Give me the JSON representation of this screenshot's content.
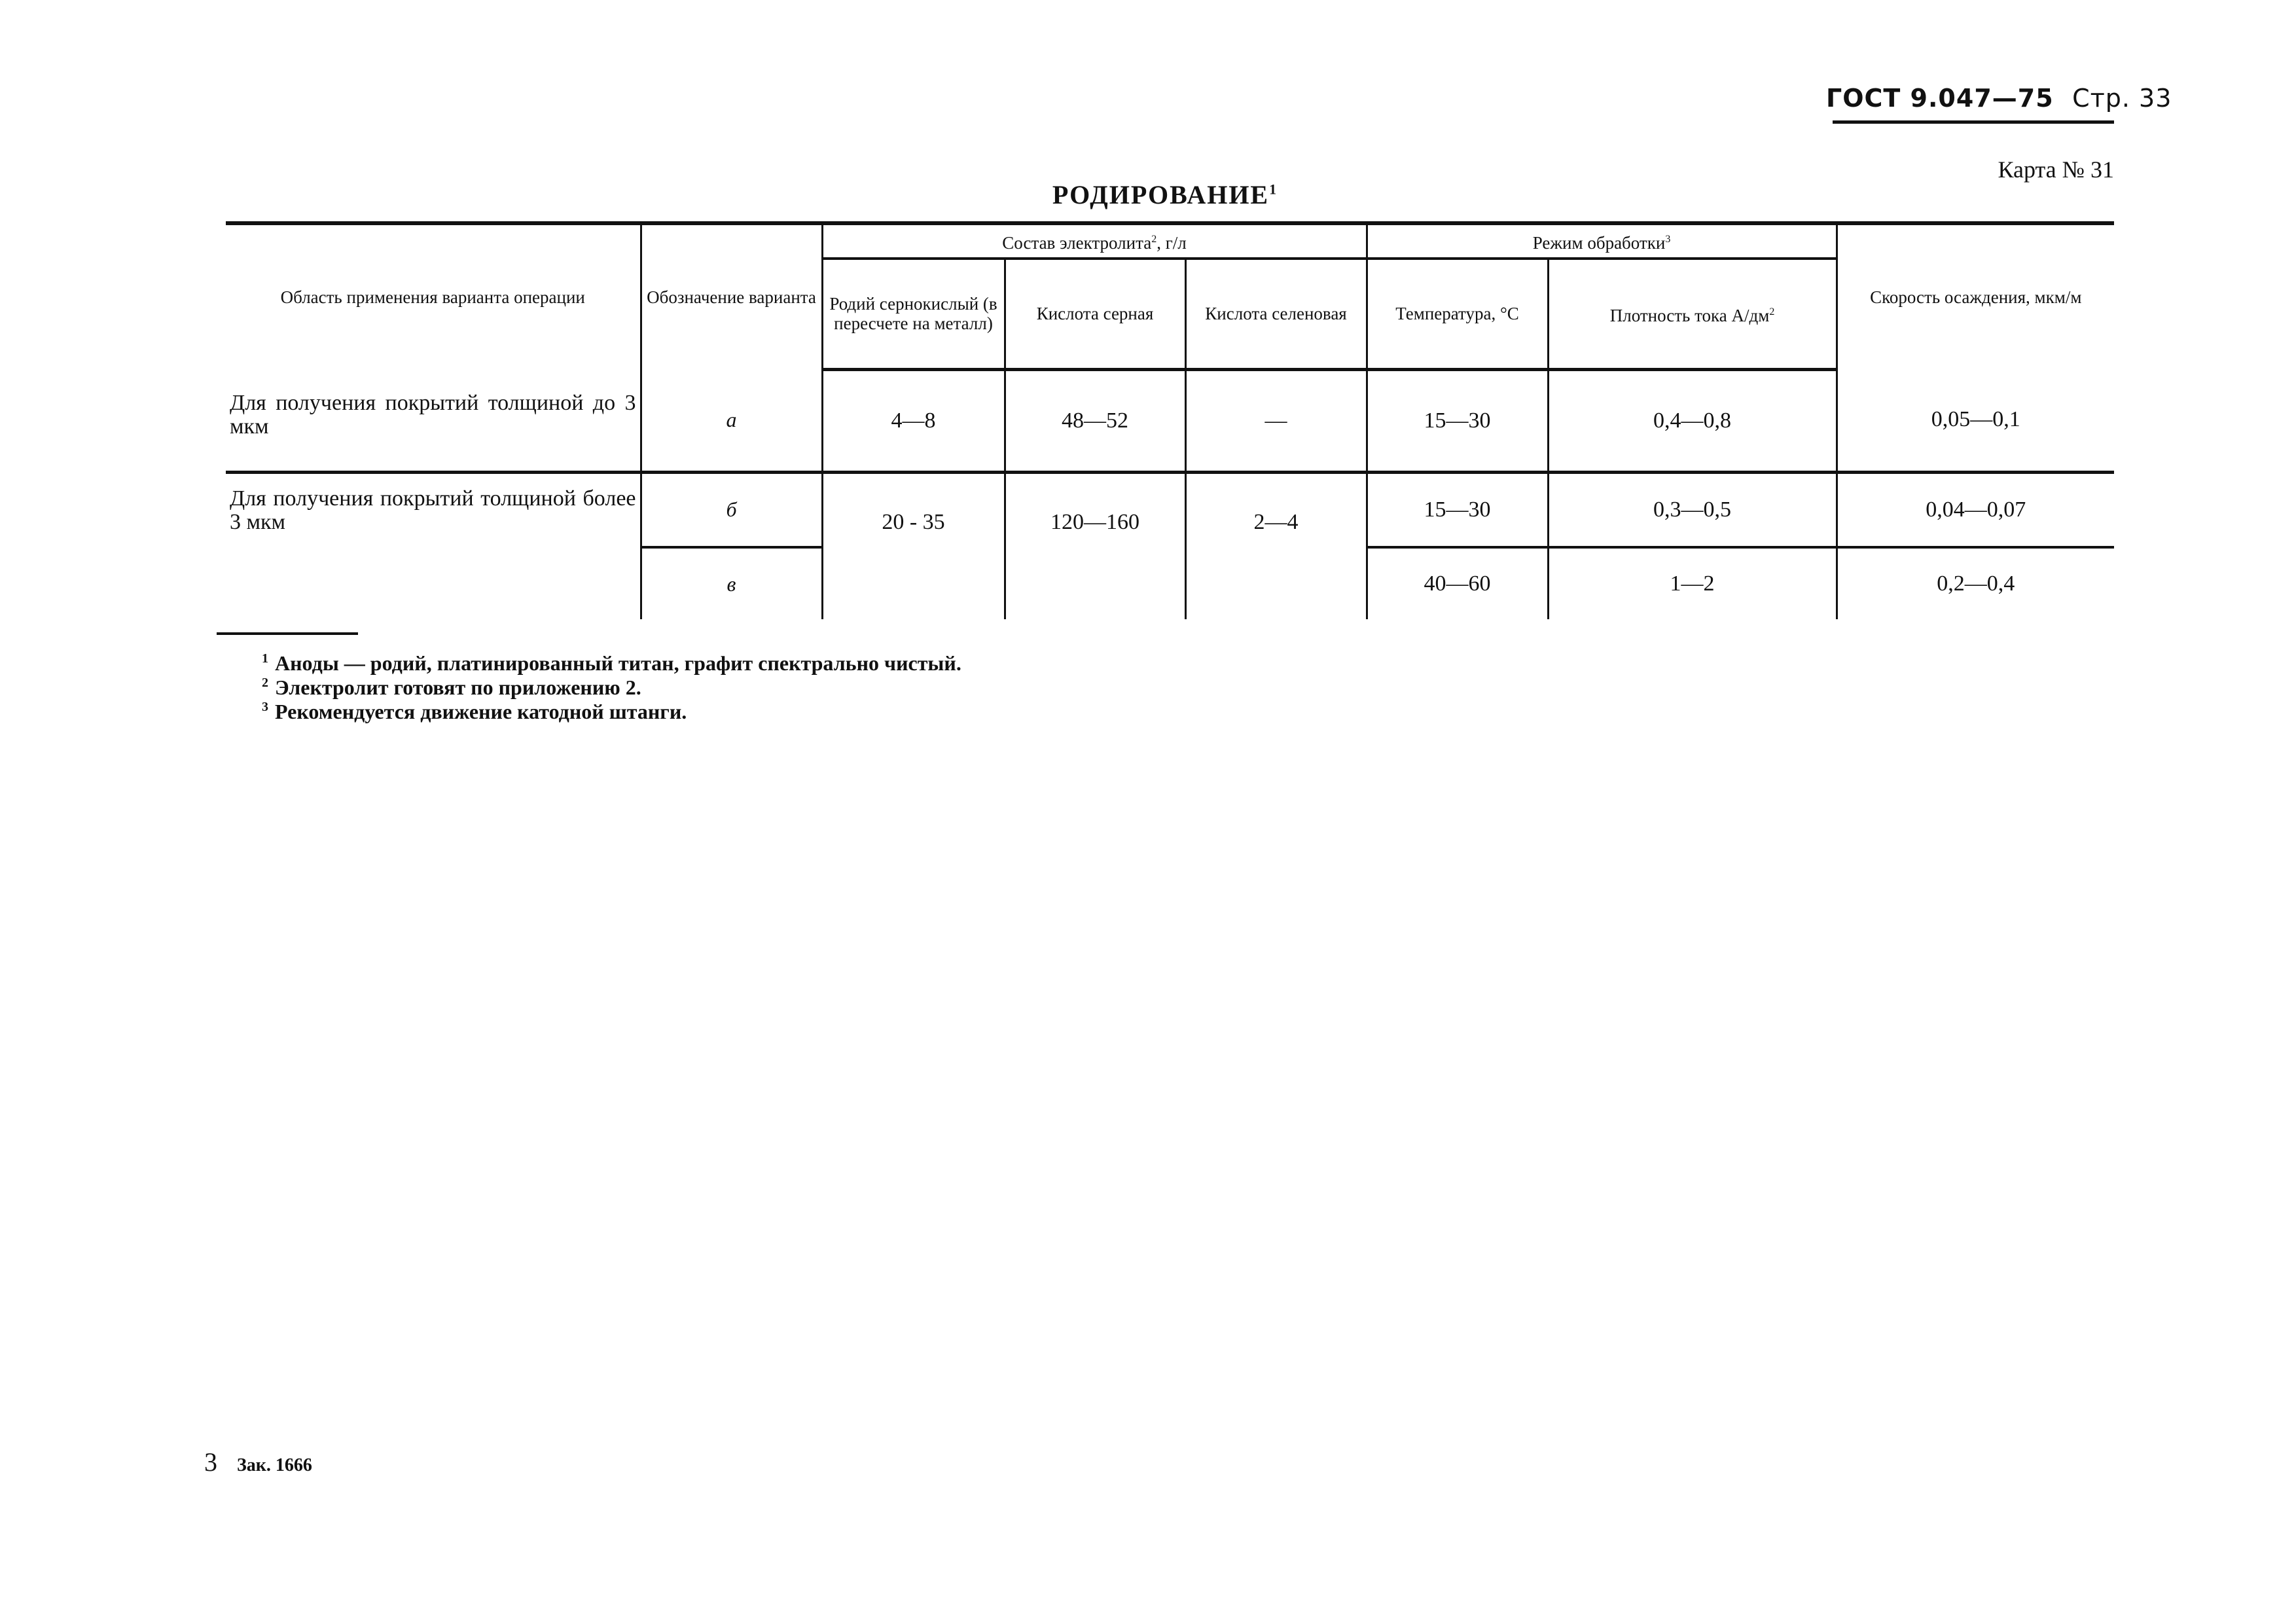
{
  "header": {
    "standard": "ГОСТ 9.047—75",
    "page": "Стр. 33"
  },
  "card": "Карта № 31",
  "title": "РОДИРОВАНИЕ",
  "title_note": "1",
  "table": {
    "headers": {
      "area": "Область применения варианта операции",
      "variant": "Обозначение варианта",
      "electrolyte_group": "Состав электролита",
      "electrolyte_note": "2",
      "electrolyte_unit": ", г/л",
      "rhodium": "Родий сернокислый (в пересчете на металл)",
      "sulfuric": "Кислота серная",
      "selenic": "Кислота селеновая",
      "mode_group": "Режим обработки",
      "mode_note": "3",
      "temperature": "Температура, °С",
      "current": "Плотность тока А/дм",
      "current_sup": "2",
      "rate": "Скорость осаждения, мкм/м"
    },
    "rows": [
      {
        "area": "Для получения покрытий толщиной до 3 мкм",
        "variant": "а",
        "rhodium": "4—8",
        "sulfuric": "48—52",
        "selenic": "—",
        "temperature": "15—30",
        "current": "0,4—0,8",
        "rate": "0,05—0,1"
      },
      {
        "area": "Для получения покрытий толщиной более 3 мкм",
        "variant": "б",
        "rhodium": "20 - 35",
        "sulfuric": "120—160",
        "selenic": "2—4",
        "temperature": "15—30",
        "current": "0,3—0,5",
        "rate": "0,04—0,07"
      },
      {
        "variant": "в",
        "temperature": "40—60",
        "current": "1—2",
        "rate": "0,2—0,4"
      }
    ]
  },
  "footnotes": [
    {
      "n": "1",
      "text": "Аноды — родий, платинированный титан, графит спектрально чистый."
    },
    {
      "n": "2",
      "text": "Электролит готовят по приложению 2."
    },
    {
      "n": "3",
      "text": "Рекомендуется движение катодной штанги."
    }
  ],
  "footer": {
    "sheet": "3",
    "order": "Зак. 1666"
  }
}
